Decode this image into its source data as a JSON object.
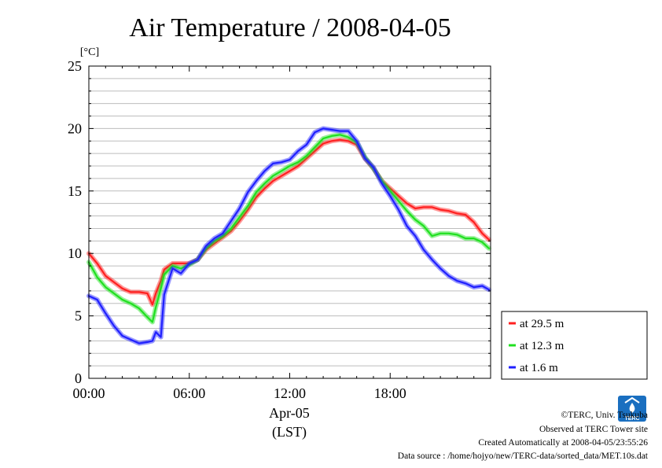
{
  "chart_data": {
    "type": "line",
    "title": "Air Temperature / 2008-04-05",
    "ylabel": "[°C]",
    "xlabel_date": "Apr-05",
    "xlabel_zone": "(LST)",
    "ylim": [
      0,
      25
    ],
    "xlim": [
      0,
      24
    ],
    "y_ticks": [
      0,
      5,
      10,
      15,
      20,
      25
    ],
    "y_tick_labels": [
      "0",
      "5",
      "10",
      "15",
      "20",
      "25"
    ],
    "x_ticks": [
      0,
      6,
      12,
      18
    ],
    "x_tick_labels": [
      "00:00",
      "06:00",
      "12:00",
      "18:00"
    ],
    "grid": "horizontal",
    "legend_position": "right",
    "x": [
      0,
      0.5,
      1,
      1.5,
      2,
      2.5,
      3,
      3.5,
      3.8,
      4,
      4.3,
      4.5,
      5,
      5.5,
      6,
      6.5,
      7,
      7.5,
      8,
      8.5,
      9,
      9.5,
      10,
      10.5,
      11,
      11.5,
      12,
      12.5,
      13,
      13.5,
      14,
      14.5,
      15,
      15.5,
      16,
      16.5,
      17,
      17.5,
      18,
      18.5,
      19,
      19.5,
      20,
      20.5,
      21,
      21.5,
      22,
      22.5,
      23,
      23.5,
      23.9
    ],
    "series": [
      {
        "name": "at 29.5 m",
        "color": "#ff2020",
        "values": [
          10.0,
          9.2,
          8.2,
          7.7,
          7.2,
          6.9,
          6.9,
          6.8,
          5.9,
          6.8,
          7.8,
          8.7,
          9.2,
          9.2,
          9.2,
          9.5,
          10.3,
          10.8,
          11.3,
          11.8,
          12.6,
          13.5,
          14.5,
          15.2,
          15.8,
          16.2,
          16.6,
          17.0,
          17.6,
          18.2,
          18.8,
          19.0,
          19.1,
          19.0,
          18.7,
          17.6,
          16.8,
          15.8,
          15.2,
          14.6,
          14.0,
          13.6,
          13.7,
          13.7,
          13.5,
          13.4,
          13.2,
          13.1,
          12.5,
          11.6,
          11.1
        ]
      },
      {
        "name": "at 12.3 m",
        "color": "#20e020",
        "values": [
          9.3,
          8.1,
          7.3,
          6.8,
          6.3,
          6.0,
          5.6,
          4.9,
          4.5,
          5.7,
          7.2,
          8.3,
          9.0,
          8.8,
          9.1,
          9.5,
          10.4,
          11.0,
          11.4,
          12.0,
          12.9,
          13.8,
          14.9,
          15.6,
          16.2,
          16.6,
          17.0,
          17.3,
          17.8,
          18.5,
          19.2,
          19.4,
          19.5,
          19.3,
          18.9,
          17.7,
          16.8,
          15.8,
          15.0,
          14.2,
          13.4,
          12.7,
          12.2,
          11.4,
          11.6,
          11.6,
          11.5,
          11.2,
          11.2,
          10.9,
          10.4
        ]
      },
      {
        "name": "at 1.6 m",
        "color": "#2020ff",
        "values": [
          6.6,
          6.3,
          5.2,
          4.2,
          3.4,
          3.1,
          2.8,
          2.9,
          3.0,
          3.7,
          3.3,
          6.7,
          8.8,
          8.4,
          9.2,
          9.5,
          10.6,
          11.2,
          11.6,
          12.6,
          13.6,
          14.9,
          15.8,
          16.6,
          17.2,
          17.3,
          17.5,
          18.2,
          18.7,
          19.7,
          20.0,
          19.9,
          19.8,
          19.8,
          19.0,
          17.6,
          16.9,
          15.6,
          14.6,
          13.5,
          12.2,
          11.4,
          10.3,
          9.5,
          8.8,
          8.2,
          7.8,
          7.6,
          7.3,
          7.4,
          7.1
        ]
      }
    ]
  },
  "credits": {
    "copyright": "©TERC, Univ. Tsukuba",
    "site": "Observed at TERC Tower site",
    "created": "Created Automatically at 2008-04-05/23:55:26",
    "source": "Data source : /home/hojyo/new/TERC-data/sorted_data/MET.10s.dat"
  },
  "logo": {
    "text": "TERC",
    "color": "#1a6fc0"
  }
}
